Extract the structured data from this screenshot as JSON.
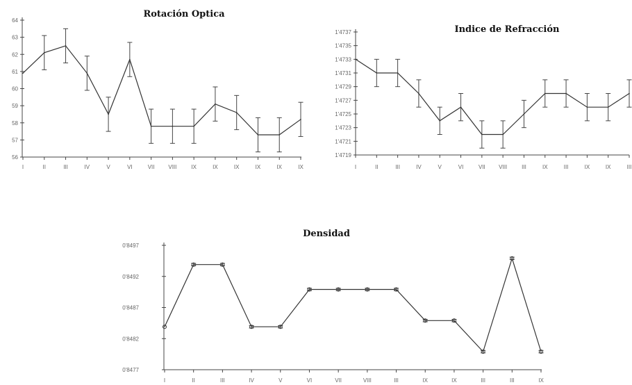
{
  "chart_data": [
    {
      "type": "line",
      "title": "Rotación Optica",
      "categories": [
        "I",
        "II",
        "III",
        "IV",
        "V",
        "VI",
        "VII",
        "VIII",
        "IX",
        "IX",
        "IX",
        "IX",
        "IX",
        "IX"
      ],
      "series": [
        {
          "values": [
            60.9,
            62.1,
            62.5,
            60.9,
            58.5,
            61.7,
            57.8,
            57.8,
            57.8,
            59.1,
            58.6,
            57.3,
            57.3,
            58.2
          ],
          "error": [
            0,
            1.0,
            1.0,
            1.0,
            1.0,
            1.0,
            1.0,
            1.0,
            1.0,
            1.0,
            1.0,
            1.0,
            1.0,
            1.0
          ]
        }
      ],
      "yticks": [
        "64",
        "63",
        "62",
        "61",
        "60",
        "59",
        "58",
        "57",
        "56"
      ],
      "ylim": [
        56,
        64
      ],
      "markers": false
    },
    {
      "type": "line",
      "title": "Indice de Refracción",
      "categories": [
        "I",
        "II",
        "III",
        "IV",
        "V",
        "VI",
        "VII",
        "VIII",
        "III",
        "IX",
        "III",
        "IX",
        "IX",
        "III"
      ],
      "series": [
        {
          "values": [
            1.4733,
            1.4731,
            1.4731,
            1.4728,
            1.4724,
            1.4726,
            1.4722,
            1.4722,
            1.4725,
            1.4728,
            1.4728,
            1.4726,
            1.4726,
            1.4728
          ],
          "error": [
            0,
            0.0002,
            0.0002,
            0.0002,
            0.0002,
            0.0002,
            0.0002,
            0.0002,
            0.0002,
            0.0002,
            0.0002,
            0.0002,
            0.0002,
            0.0002
          ]
        }
      ],
      "yticks": [
        "1'4737",
        "1'4735",
        "1'4733",
        "1'4731",
        "1'4729",
        "1'4727",
        "1'4725",
        "1'4723",
        "1'4721",
        "1'4719"
      ],
      "ylim": [
        1.4719,
        1.4737
      ],
      "markers": false
    },
    {
      "type": "line",
      "title": "Densidad",
      "categories": [
        "I",
        "II",
        "III",
        "IV",
        "V",
        "VI",
        "VII",
        "VIII",
        "III",
        "IX",
        "IX",
        "III",
        "III",
        "IX"
      ],
      "series": [
        {
          "values": [
            0.84839,
            0.84939,
            0.84939,
            0.84839,
            0.84839,
            0.84899,
            0.84899,
            0.84899,
            0.84899,
            0.84849,
            0.84849,
            0.84799,
            0.84949,
            0.84799
          ],
          "error": [
            0,
            2e-05,
            2e-05,
            2e-05,
            2e-05,
            2e-05,
            2e-05,
            2e-05,
            2e-05,
            2e-05,
            2e-05,
            2e-05,
            2e-05,
            2e-05
          ]
        }
      ],
      "yticks": [
        "0'8497",
        "0'8492",
        "0'8487",
        "0'8482",
        "0'8477"
      ],
      "ylim": [
        0.8477,
        0.8497
      ],
      "markers": true
    }
  ]
}
